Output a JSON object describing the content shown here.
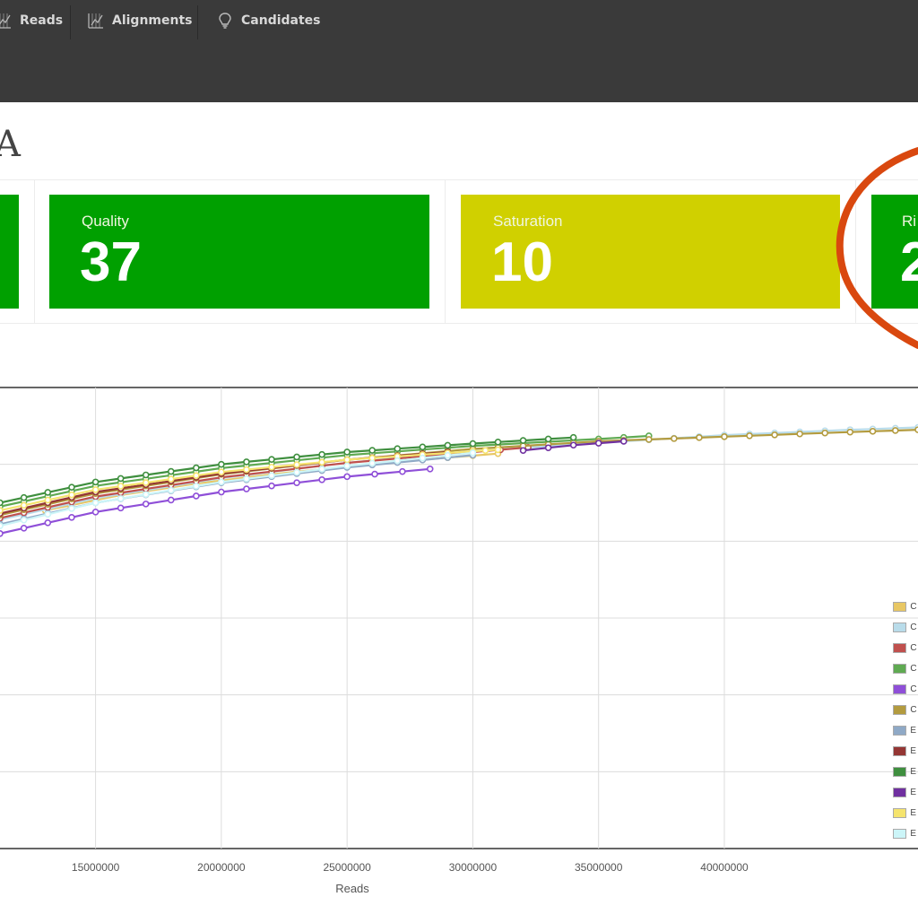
{
  "nav": {
    "items": [
      {
        "label": "Reads",
        "icon": "chart-icon"
      },
      {
        "label": "Alignments",
        "icon": "chart-icon"
      },
      {
        "label": "Candidates",
        "icon": "lightbulb-icon"
      }
    ]
  },
  "page": {
    "title_fragment": "A"
  },
  "tiles": [
    {
      "label": "Quality",
      "value": "37",
      "color": "#00a000"
    },
    {
      "label": "Saturation",
      "value": "10",
      "color": "#d0d000"
    },
    {
      "label": "Ri",
      "value": "2",
      "color": "#00a000"
    }
  ],
  "colors": {
    "highlight_circle": "#d9480f",
    "topbar": "#3a3a3a"
  },
  "chart_data": {
    "type": "line",
    "xlabel": "Reads",
    "x_ticks": [
      15000000,
      20000000,
      25000000,
      30000000,
      35000000,
      40000000
    ],
    "x_tick_labels": [
      "15000000",
      "20000000",
      "25000000",
      "30000000",
      "35000000",
      "40000000"
    ],
    "xlim": [
      11200000,
      47700000
    ],
    "ylim": [
      0,
      6
    ],
    "grid": true,
    "legend_position": "right",
    "series": [
      {
        "label": "C",
        "color": "#e8c764",
        "points": [
          [
            13000000,
            4.4
          ],
          [
            16000000,
            4.6
          ],
          [
            19000000,
            4.75
          ],
          [
            22000000,
            4.87
          ],
          [
            25000000,
            4.97
          ],
          [
            28000000,
            5.06
          ],
          [
            31000000,
            5.14
          ]
        ]
      },
      {
        "label": "C",
        "color": "#b9dcea",
        "points": [
          [
            11200000,
            4.28
          ],
          [
            15000000,
            4.56
          ],
          [
            20000000,
            4.82
          ],
          [
            25000000,
            5.02
          ],
          [
            30000000,
            5.17
          ],
          [
            35000000,
            5.28
          ],
          [
            40000000,
            5.38
          ],
          [
            45000000,
            5.45
          ],
          [
            47700000,
            5.48
          ]
        ]
      },
      {
        "label": "C",
        "color": "#c0504d",
        "points": [
          [
            11200000,
            4.3
          ],
          [
            15000000,
            4.58
          ],
          [
            20000000,
            4.83
          ],
          [
            25000000,
            5.02
          ],
          [
            30000000,
            5.16
          ],
          [
            32200000,
            5.22
          ]
        ]
      },
      {
        "label": "C",
        "color": "#5faa52",
        "points": [
          [
            11200000,
            4.45
          ],
          [
            15000000,
            4.72
          ],
          [
            20000000,
            4.95
          ],
          [
            25000000,
            5.12
          ],
          [
            30000000,
            5.24
          ],
          [
            35000000,
            5.33
          ],
          [
            37000000,
            5.37
          ]
        ]
      },
      {
        "label": "C",
        "color": "#8f4fd8",
        "points": [
          [
            11200000,
            4.1
          ],
          [
            15000000,
            4.38
          ],
          [
            20000000,
            4.64
          ],
          [
            25000000,
            4.84
          ],
          [
            28300000,
            4.94
          ]
        ]
      },
      {
        "label": "C",
        "color": "#b39b3f",
        "points": [
          [
            11200000,
            4.34
          ],
          [
            15000000,
            4.62
          ],
          [
            20000000,
            4.87
          ],
          [
            25000000,
            5.06
          ],
          [
            30000000,
            5.2
          ],
          [
            35000000,
            5.3
          ],
          [
            40000000,
            5.36
          ],
          [
            45000000,
            5.42
          ],
          [
            47700000,
            5.45
          ]
        ]
      },
      {
        "label": "E",
        "color": "#8fa9c6",
        "points": [
          [
            11200000,
            4.22
          ],
          [
            15000000,
            4.5
          ],
          [
            20000000,
            4.76
          ],
          [
            25000000,
            4.96
          ],
          [
            30000000,
            5.12
          ]
        ]
      },
      {
        "label": "E",
        "color": "#943634",
        "points": [
          [
            11200000,
            4.36
          ],
          [
            15000000,
            4.64
          ],
          [
            20000000,
            4.88
          ],
          [
            25000000,
            5.06
          ],
          [
            29000000,
            5.16
          ]
        ]
      },
      {
        "label": "E",
        "color": "#3f8f3f",
        "points": [
          [
            11200000,
            4.5
          ],
          [
            15000000,
            4.77
          ],
          [
            20000000,
            5.0
          ],
          [
            25000000,
            5.16
          ],
          [
            30000000,
            5.27
          ],
          [
            34000000,
            5.35
          ]
        ]
      },
      {
        "label": "E",
        "color": "#7030a0",
        "points": [
          [
            32000000,
            5.18
          ],
          [
            34000000,
            5.25
          ],
          [
            36000000,
            5.3
          ]
        ]
      },
      {
        "label": "E",
        "color": "#f5e46e",
        "points": [
          [
            11200000,
            4.4
          ],
          [
            15000000,
            4.67
          ],
          [
            20000000,
            4.9
          ],
          [
            25000000,
            5.06
          ],
          [
            30000000,
            5.17
          ],
          [
            31000000,
            5.19
          ]
        ]
      },
      {
        "label": "E",
        "color": "#ccf5f8",
        "points": [
          [
            11200000,
            4.2
          ],
          [
            15000000,
            4.5
          ],
          [
            20000000,
            4.77
          ],
          [
            25000000,
            4.98
          ],
          [
            30000000,
            5.15
          ]
        ]
      }
    ]
  }
}
